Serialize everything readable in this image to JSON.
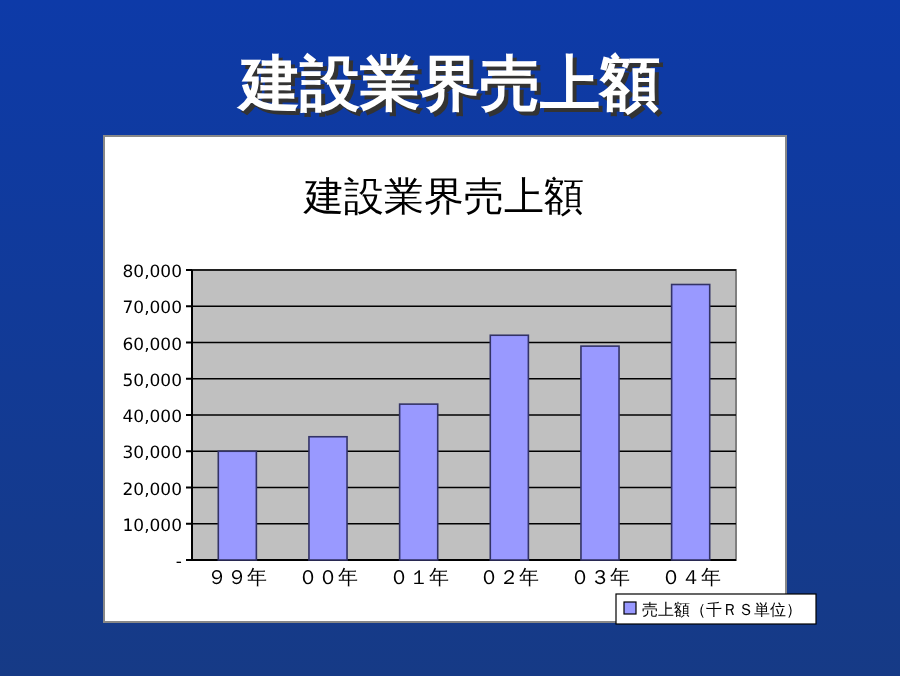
{
  "chart_data": {
    "type": "bar",
    "title": "建設業界売上額",
    "subtitle": "建設業界売上額",
    "categories": [
      "９９年",
      "００年",
      "０１年",
      "０２年",
      "０３年",
      "０４年"
    ],
    "series": [
      {
        "name": "売上額（千ＲＳ単位）",
        "color": "#9999ff",
        "values": [
          30000,
          34000,
          43000,
          62000,
          59000,
          76000
        ]
      }
    ],
    "ylim": [
      0,
      80000
    ],
    "yticks": [
      {
        "value": 0,
        "label": "-"
      },
      {
        "value": 10000,
        "label": "10,000"
      },
      {
        "value": 20000,
        "label": "20,000"
      },
      {
        "value": 30000,
        "label": "30,000"
      },
      {
        "value": 40000,
        "label": "40,000"
      },
      {
        "value": 50000,
        "label": "50,000"
      },
      {
        "value": 60000,
        "label": "60,000"
      },
      {
        "value": 70000,
        "label": "70,000"
      },
      {
        "value": 80000,
        "label": "80,000"
      }
    ],
    "grid": "y",
    "legend": "bottom right"
  }
}
